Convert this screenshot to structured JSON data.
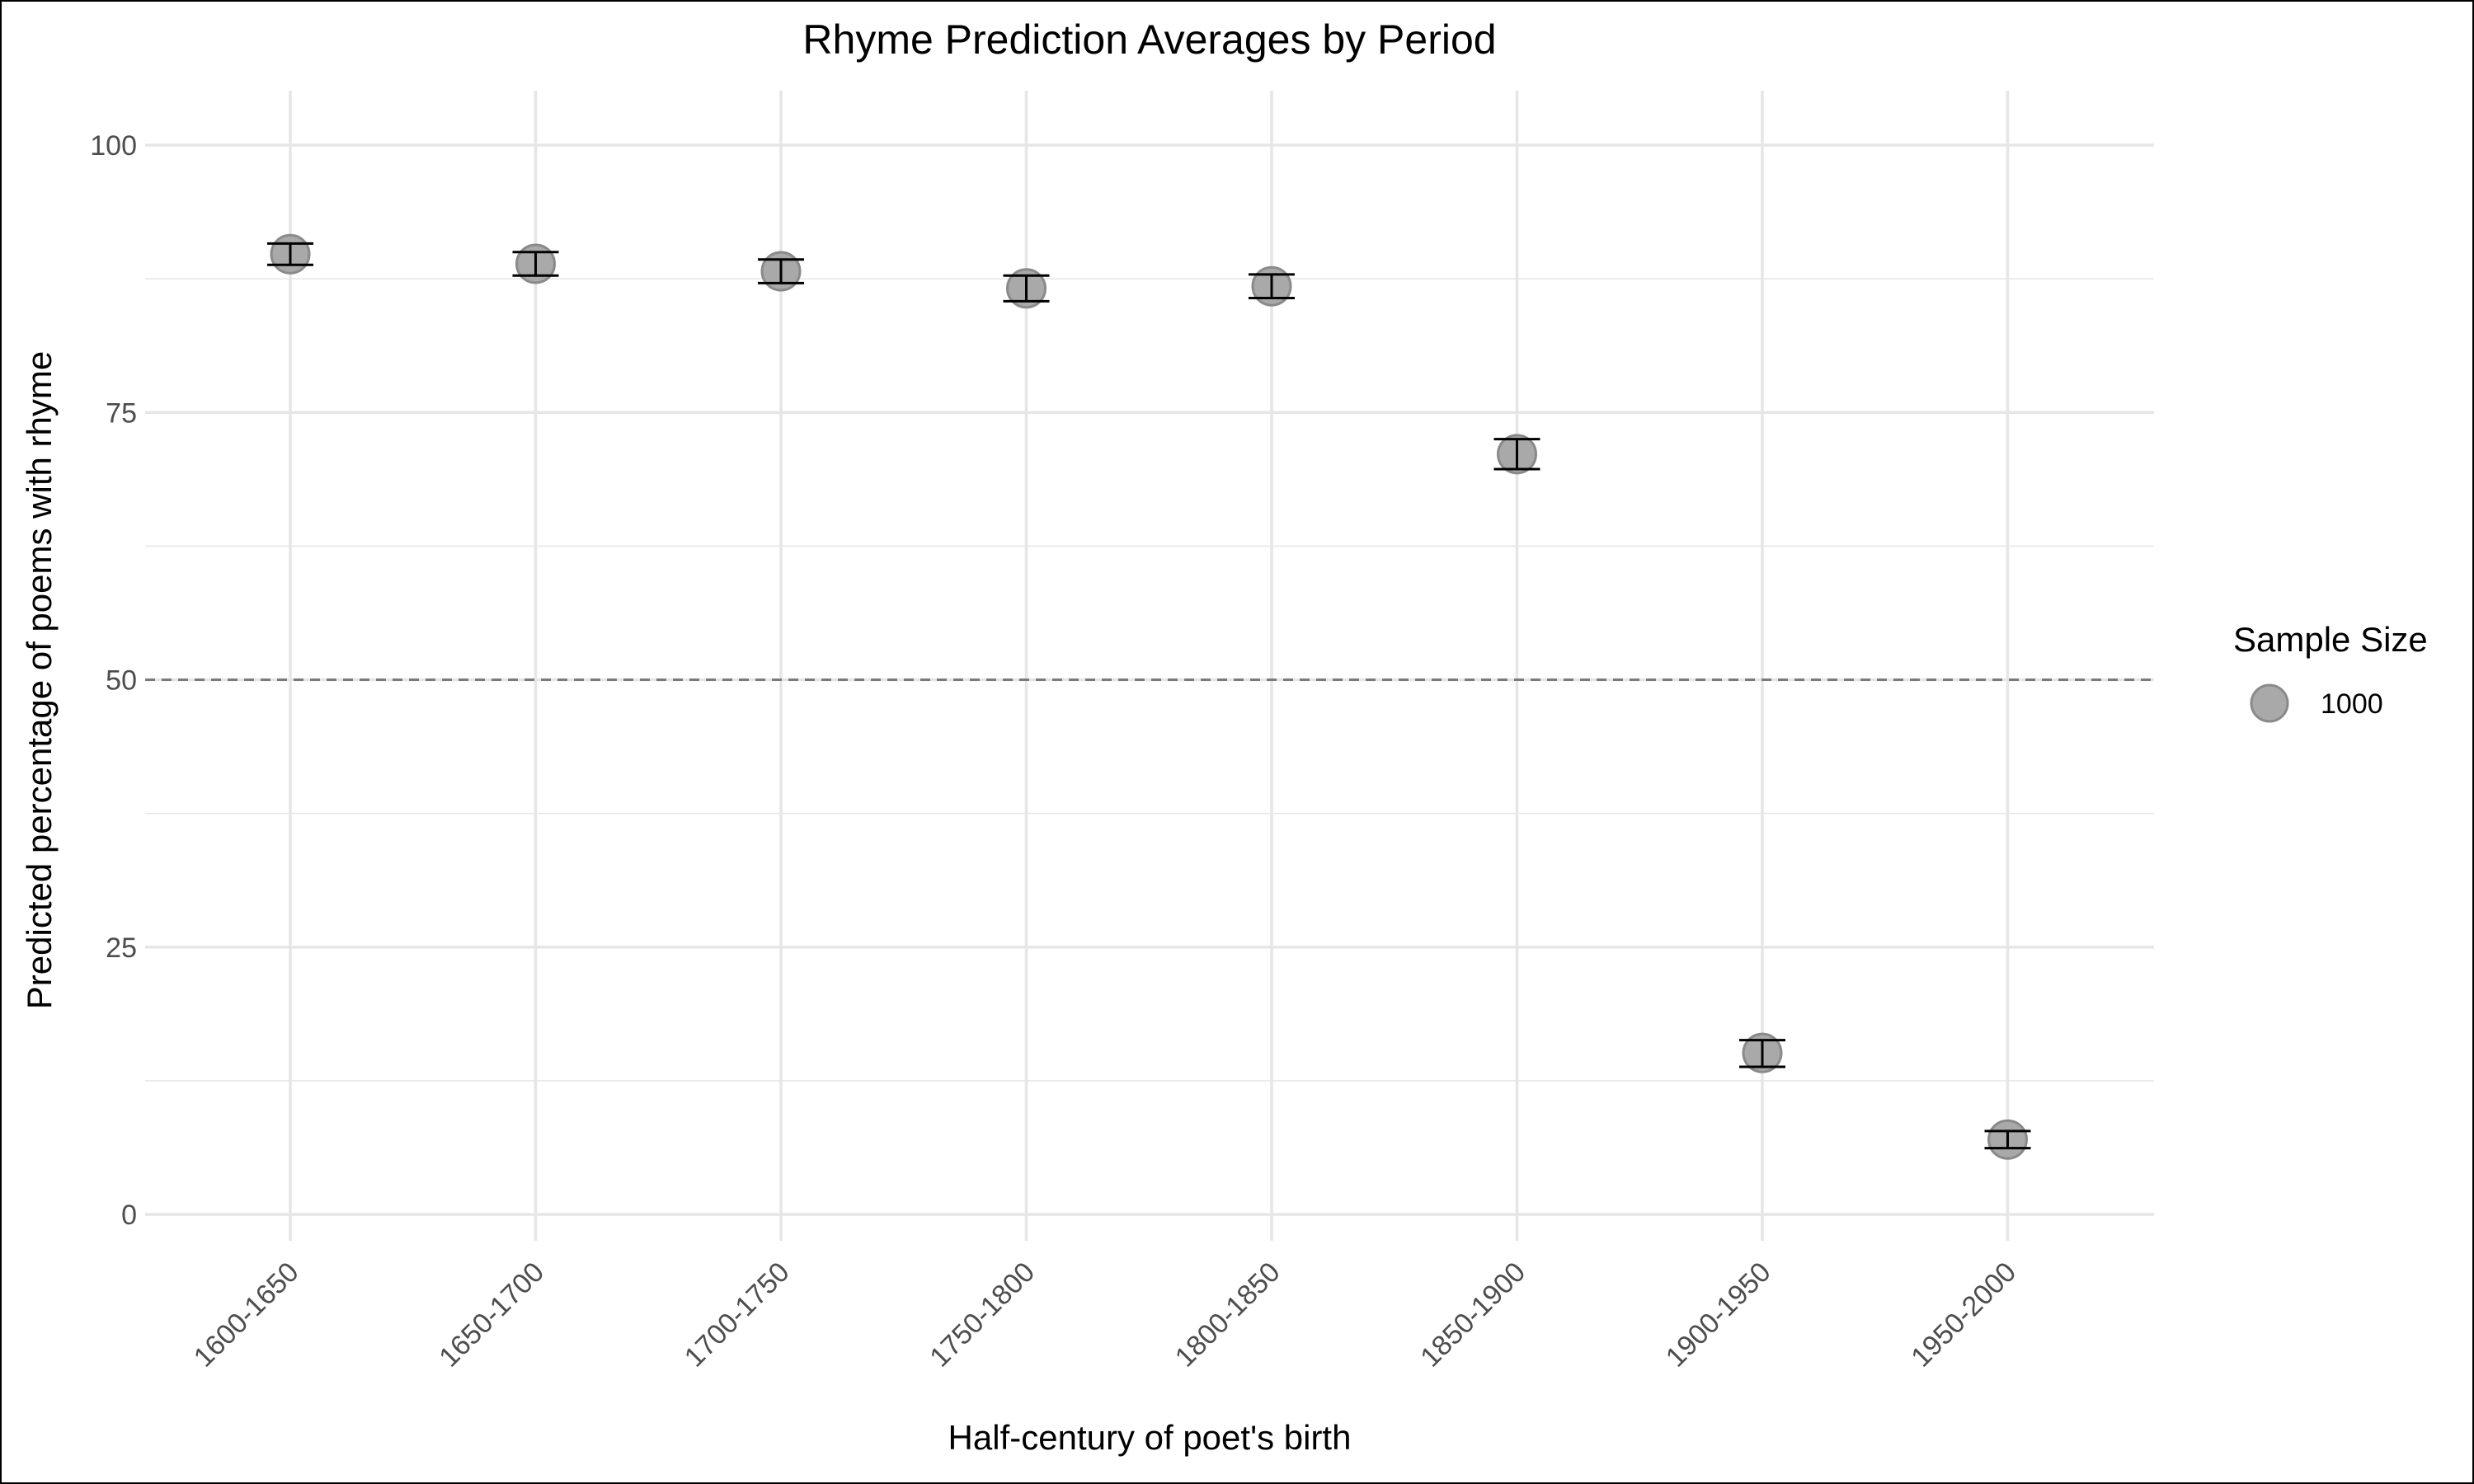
{
  "chart_data": {
    "type": "scatter",
    "title": "Rhyme Prediction Averages by Period",
    "xlabel": "Half-century of poet's birth",
    "ylabel": "Predicted percentage of poems with rhyme",
    "categories": [
      "1600-1650",
      "1650-1700",
      "1700-1750",
      "1750-1800",
      "1800-1850",
      "1850-1900",
      "1900-1950",
      "1950-2000"
    ],
    "values": [
      89.8,
      88.9,
      88.2,
      86.6,
      86.8,
      71.1,
      15.1,
      7.0
    ],
    "error_lower": [
      88.8,
      87.8,
      87.1,
      85.4,
      85.7,
      69.7,
      13.8,
      6.2
    ],
    "error_upper": [
      90.8,
      90.0,
      89.3,
      87.8,
      87.9,
      72.5,
      16.3,
      7.8
    ],
    "ylim": [
      -4,
      105
    ],
    "yticks": [
      0,
      25,
      50,
      75,
      100
    ],
    "reference_line": 50,
    "grid": true,
    "legend": {
      "title": "Sample Size",
      "entries": [
        "1000"
      ],
      "position": "right"
    },
    "colors": {
      "point_fill": "#a9a9a9",
      "point_stroke": "#8a8a8a",
      "error_bar": "#000000",
      "grid": "#e6e6e6",
      "reference_line": "#7a7a7a"
    }
  }
}
